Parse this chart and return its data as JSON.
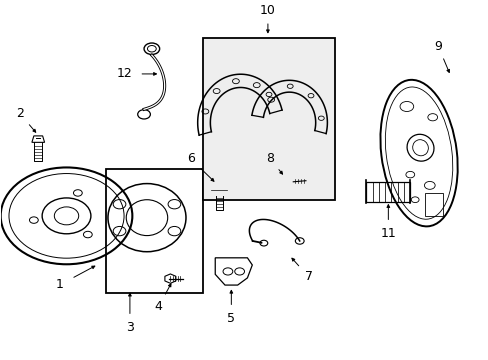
{
  "background_color": "#ffffff",
  "line_color": "#000000",
  "label_color": "#000000",
  "fig_width": 4.89,
  "fig_height": 3.6,
  "dpi": 100
}
